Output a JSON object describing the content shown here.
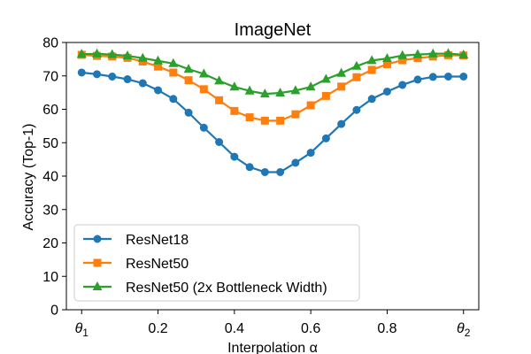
{
  "chart_data": {
    "type": "line",
    "title": "ImageNet",
    "xlabel": "Interpolation α",
    "ylabel": "Accuracy (Top-1)",
    "xlim": [
      -0.04,
      1.04
    ],
    "ylim": [
      0,
      80
    ],
    "x_ticks": [
      {
        "value": 0.0,
        "label": "θ",
        "sub": "1"
      },
      {
        "value": 0.2,
        "label": "0.2"
      },
      {
        "value": 0.4,
        "label": "0.4"
      },
      {
        "value": 0.6,
        "label": "0.6"
      },
      {
        "value": 0.8,
        "label": "0.8"
      },
      {
        "value": 1.0,
        "label": "θ",
        "sub": "2"
      }
    ],
    "y_ticks": [
      0,
      10,
      20,
      30,
      40,
      50,
      60,
      70,
      80
    ],
    "grid": false,
    "legend_position": "lower-left",
    "x": [
      0.0,
      0.04,
      0.08,
      0.12,
      0.16,
      0.2,
      0.24,
      0.28,
      0.32,
      0.36,
      0.4,
      0.44,
      0.48,
      0.52,
      0.56,
      0.6,
      0.64,
      0.68,
      0.72,
      0.76,
      0.8,
      0.84,
      0.88,
      0.92,
      0.96,
      1.0
    ],
    "series": [
      {
        "name": "ResNet18",
        "color": "#1f77b4",
        "marker": "circle",
        "values": [
          71.0,
          70.5,
          69.8,
          69.0,
          67.8,
          65.7,
          63.1,
          59.0,
          54.5,
          50.2,
          45.8,
          42.7,
          41.2,
          41.2,
          44.0,
          47.0,
          51.3,
          55.6,
          59.8,
          63.1,
          65.3,
          67.3,
          68.9,
          69.7,
          69.8,
          69.8
        ]
      },
      {
        "name": "ResNet50",
        "color": "#ff7f0e",
        "marker": "square",
        "values": [
          76.3,
          76.0,
          75.8,
          75.4,
          74.3,
          72.8,
          71.0,
          68.7,
          66.0,
          62.7,
          59.5,
          57.6,
          56.6,
          56.6,
          58.5,
          61.2,
          64.0,
          66.8,
          69.6,
          71.8,
          73.5,
          74.7,
          75.3,
          75.8,
          76.2,
          76.1
        ]
      },
      {
        "name": "ResNet50 (2x Bottleneck Width)",
        "color": "#2ca02c",
        "marker": "triangle",
        "values": [
          76.5,
          76.6,
          76.4,
          76.0,
          75.3,
          74.5,
          73.7,
          72.0,
          70.6,
          68.5,
          66.7,
          65.5,
          64.6,
          64.9,
          65.6,
          66.7,
          69.0,
          70.8,
          72.9,
          74.6,
          75.2,
          76.1,
          76.4,
          76.6,
          76.7,
          76.3
        ]
      }
    ]
  }
}
